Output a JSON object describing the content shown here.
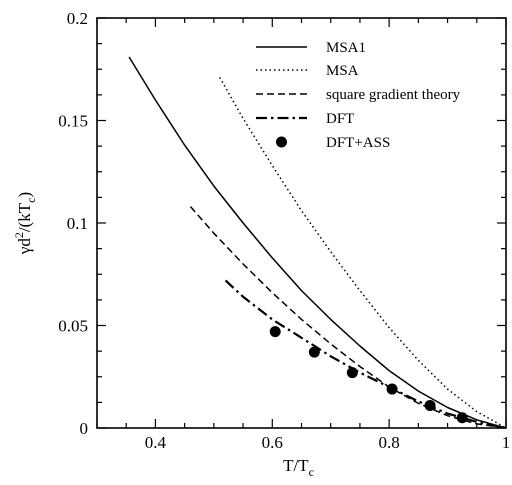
{
  "chart_data": {
    "type": "line",
    "xlabel": "T/T",
    "xlabel_sub": "c",
    "ylabel_main": "γd",
    "ylabel_sup": "2",
    "ylabel_open": "/(kT",
    "ylabel_sub": "c",
    "ylabel_close": ")",
    "xlim": [
      0.3,
      1.0
    ],
    "ylim": [
      0,
      0.2
    ],
    "xticks": [
      0.4,
      0.6,
      0.8,
      1.0
    ],
    "xtick_labels": [
      "0.4",
      "0.6",
      "0.8",
      "1"
    ],
    "yticks": [
      0,
      0.05,
      0.1,
      0.15,
      0.2
    ],
    "ytick_labels": [
      "0",
      "0.05",
      "0.1",
      "0.15",
      "0.2"
    ],
    "grid": false,
    "legend_position": "top-right",
    "series": [
      {
        "name": "MSA1",
        "style": "solid",
        "x": [
          0.355,
          0.4,
          0.45,
          0.5,
          0.55,
          0.6,
          0.65,
          0.7,
          0.75,
          0.8,
          0.85,
          0.9,
          0.95,
          0.98,
          1.0
        ],
        "y": [
          0.181,
          0.16,
          0.138,
          0.118,
          0.1,
          0.083,
          0.067,
          0.053,
          0.04,
          0.028,
          0.018,
          0.01,
          0.004,
          0.0015,
          0
        ]
      },
      {
        "name": "MSA",
        "style": "dotted",
        "x": [
          0.51,
          0.55,
          0.6,
          0.65,
          0.7,
          0.75,
          0.8,
          0.85,
          0.9,
          0.95,
          1.0
        ],
        "y": [
          0.171,
          0.151,
          0.128,
          0.106,
          0.086,
          0.067,
          0.049,
          0.033,
          0.019,
          0.008,
          0
        ]
      },
      {
        "name": "square gradient theory",
        "style": "dashed",
        "x": [
          0.46,
          0.5,
          0.55,
          0.6,
          0.65,
          0.7,
          0.75,
          0.8,
          0.85,
          0.9,
          0.95,
          1.0
        ],
        "y": [
          0.108,
          0.095,
          0.08,
          0.066,
          0.053,
          0.041,
          0.03,
          0.02,
          0.012,
          0.006,
          0.002,
          0
        ]
      },
      {
        "name": "DFT",
        "style": "dashdot",
        "x": [
          0.52,
          0.55,
          0.6,
          0.65,
          0.7,
          0.75,
          0.8,
          0.85,
          0.9,
          0.95,
          1.0
        ],
        "y": [
          0.072,
          0.064,
          0.053,
          0.044,
          0.035,
          0.027,
          0.02,
          0.013,
          0.007,
          0.003,
          0
        ]
      },
      {
        "name": "DFT+ASS",
        "style": "markers",
        "x": [
          0.605,
          0.672,
          0.737,
          0.805,
          0.87,
          0.925
        ],
        "y": [
          0.047,
          0.037,
          0.027,
          0.019,
          0.011,
          0.005
        ]
      }
    ]
  }
}
